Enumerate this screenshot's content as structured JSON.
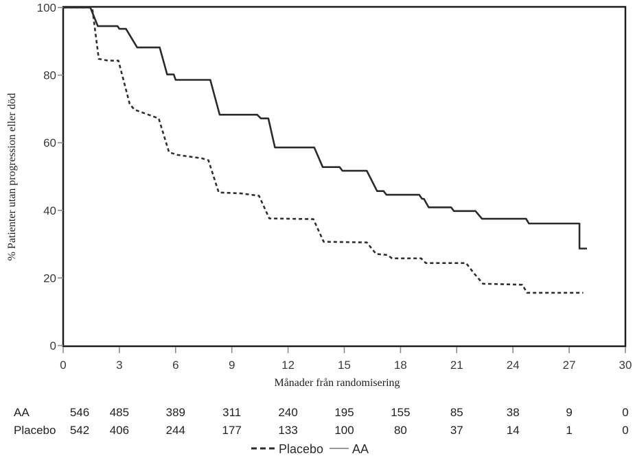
{
  "chart_data": {
    "type": "line",
    "subtype": "kaplan-meier-step",
    "title": "",
    "xlabel": "Månader från randomisering",
    "ylabel": "% Patienter utan progression eller död",
    "xlim": [
      0,
      30
    ],
    "ylim": [
      0,
      100
    ],
    "xticks": [
      0,
      3,
      6,
      9,
      12,
      15,
      18,
      21,
      24,
      27,
      30
    ],
    "yticks": [
      0,
      20,
      40,
      60,
      80,
      100
    ],
    "grid": false,
    "legend_position": "bottom-center",
    "series": [
      {
        "name": "AA",
        "style": "solid",
        "color": "#2a2a2a",
        "points": [
          [
            0,
            100
          ],
          [
            1.45,
            100
          ],
          [
            1.85,
            94.5
          ],
          [
            2.9,
            94.5
          ],
          [
            3.0,
            93.7
          ],
          [
            3.35,
            93.7
          ],
          [
            3.95,
            88.2
          ],
          [
            5.15,
            88.2
          ],
          [
            5.55,
            80.2
          ],
          [
            5.9,
            80.2
          ],
          [
            6.0,
            78.6
          ],
          [
            7.85,
            78.6
          ],
          [
            8.35,
            68.3
          ],
          [
            10.35,
            68.3
          ],
          [
            10.55,
            67.2
          ],
          [
            10.95,
            67.2
          ],
          [
            11.3,
            58.6
          ],
          [
            13.4,
            58.6
          ],
          [
            13.85,
            52.8
          ],
          [
            14.75,
            52.8
          ],
          [
            14.9,
            51.7
          ],
          [
            16.2,
            51.7
          ],
          [
            16.75,
            45.7
          ],
          [
            17.1,
            45.7
          ],
          [
            17.25,
            44.6
          ],
          [
            19.0,
            44.6
          ],
          [
            19.15,
            43.4
          ],
          [
            19.25,
            43.4
          ],
          [
            19.5,
            40.9
          ],
          [
            20.7,
            40.9
          ],
          [
            20.85,
            39.8
          ],
          [
            22.0,
            39.8
          ],
          [
            22.35,
            37.5
          ],
          [
            24.7,
            37.5
          ],
          [
            24.85,
            36.1
          ],
          [
            27.55,
            36.1
          ],
          [
            27.55,
            28.7
          ],
          [
            27.95,
            28.7
          ]
        ]
      },
      {
        "name": "Placebo",
        "style": "dashed",
        "color": "#2f2f2f",
        "points": [
          [
            0,
            100
          ],
          [
            1.55,
            100
          ],
          [
            1.9,
            84.8
          ],
          [
            2.4,
            84.3
          ],
          [
            2.95,
            84.3
          ],
          [
            3.55,
            71.5
          ],
          [
            3.8,
            69.8
          ],
          [
            5.1,
            67.2
          ],
          [
            5.65,
            57.2
          ],
          [
            6.1,
            56.4
          ],
          [
            7.4,
            55.4
          ],
          [
            7.75,
            54.8
          ],
          [
            8.3,
            45.3
          ],
          [
            9.5,
            45.0
          ],
          [
            10.45,
            44.3
          ],
          [
            11.0,
            37.6
          ],
          [
            13.35,
            37.4
          ],
          [
            13.9,
            30.7
          ],
          [
            16.2,
            30.5
          ],
          [
            16.7,
            27.1
          ],
          [
            17.3,
            26.8
          ],
          [
            17.55,
            25.8
          ],
          [
            19.1,
            25.8
          ],
          [
            19.35,
            24.4
          ],
          [
            21.5,
            24.4
          ],
          [
            21.9,
            21.5
          ],
          [
            22.4,
            18.3
          ],
          [
            24.5,
            18.0
          ],
          [
            24.75,
            15.6
          ],
          [
            27.75,
            15.6
          ]
        ]
      }
    ],
    "risk_table": {
      "rows": [
        {
          "label": "AA",
          "values": [
            "546",
            "485",
            "389",
            "311",
            "240",
            "195",
            "155",
            "85",
            "38",
            "9",
            "0"
          ]
        },
        {
          "label": "Placebo",
          "values": [
            "542",
            "406",
            "244",
            "177",
            "133",
            "100",
            "80",
            "37",
            "14",
            "1",
            "0"
          ]
        }
      ]
    },
    "legend": [
      {
        "label": "Placebo",
        "style": "dashed",
        "sample_color": "#2a2a2a"
      },
      {
        "label": "AA",
        "style": "solid",
        "sample_color": "#9a9a9a"
      }
    ]
  }
}
